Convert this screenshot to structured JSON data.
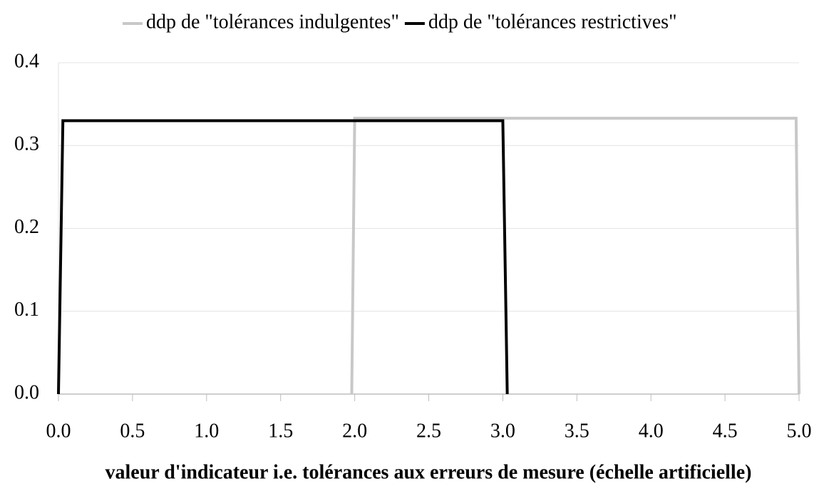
{
  "chart_data": {
    "type": "line",
    "x_label": "valeur d'indicateur i.e. tolérances aux erreurs de mesure (échelle artificielle)",
    "series": [
      {
        "name": "ddp de \"tolérances indulgentes\"",
        "color": "#c8c8c8",
        "x": [
          1.98,
          2.0,
          4.98,
          5.0
        ],
        "values": [
          0,
          0.333,
          0.333,
          0
        ]
      },
      {
        "name": "ddp de \"tolérances restrictives\"",
        "color": "#000000",
        "x": [
          0.0,
          0.03,
          3.0,
          3.03
        ],
        "values": [
          0,
          0.33,
          0.33,
          0
        ]
      }
    ],
    "xlim": [
      0,
      5
    ],
    "ylim": [
      0,
      0.4
    ],
    "xticks": [
      {
        "value": 0,
        "label": "0.0"
      },
      0.5,
      {
        "value": 1,
        "label": "1.0"
      },
      1.5,
      {
        "value": 2,
        "label": "2.0"
      },
      2.5,
      {
        "value": 3,
        "label": "3.0"
      },
      3.5,
      {
        "value": 4,
        "label": "4.0"
      },
      4.5,
      {
        "value": 5,
        "label": "5.0"
      }
    ],
    "yticks": [
      {
        "value": 0,
        "label": "0.0"
      },
      0.1,
      0.2,
      0.3,
      0.4
    ],
    "grid": true,
    "legend": "top"
  }
}
